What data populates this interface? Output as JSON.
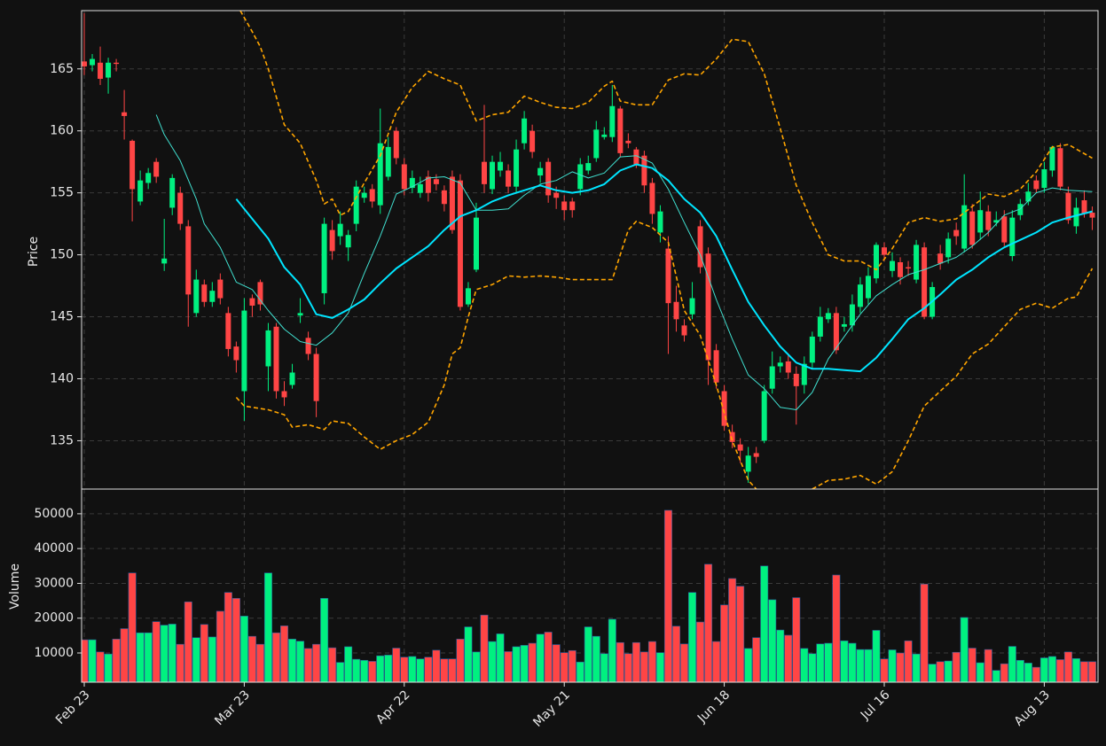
{
  "chart_data": {
    "type": "candlestick",
    "categories": [
      "Feb 23",
      null,
      null,
      null,
      null,
      null,
      null,
      null,
      null,
      null,
      null,
      null,
      null,
      null,
      null,
      null,
      null,
      null,
      null,
      null,
      "Mar 23",
      null,
      null,
      null,
      null,
      null,
      null,
      null,
      null,
      null,
      null,
      null,
      null,
      null,
      null,
      null,
      null,
      null,
      null,
      null,
      "Apr 22",
      null,
      null,
      null,
      null,
      null,
      null,
      null,
      null,
      null,
      null,
      null,
      null,
      null,
      null,
      null,
      null,
      null,
      null,
      null,
      "May 21",
      null,
      null,
      null,
      null,
      null,
      null,
      null,
      null,
      null,
      null,
      null,
      null,
      null,
      null,
      null,
      null,
      null,
      null,
      null,
      "Jun 18",
      null,
      null,
      null,
      null,
      null,
      null,
      null,
      null,
      null,
      null,
      null,
      null,
      null,
      null,
      null,
      null,
      null,
      null,
      null,
      "Jul 16",
      null,
      null,
      null,
      null,
      null,
      null,
      null,
      null,
      null,
      null,
      null,
      null,
      null,
      null,
      null,
      null,
      null,
      null,
      null,
      "Aug 13",
      null,
      null,
      null,
      null,
      null,
      null
    ],
    "open": [
      165.6,
      165.3,
      165.5,
      164.3,
      165.5,
      161.5,
      159.2,
      154.3,
      155.8,
      157.5,
      149.3,
      153.8,
      155.0,
      152.3,
      145.3,
      147.6,
      146.2,
      148.0,
      145.3,
      142.6,
      139.0,
      146.5,
      147.8,
      141.0,
      144.2,
      139.0,
      139.5,
      145.1,
      143.3,
      142.0,
      146.9,
      152.0,
      151.5,
      150.6,
      152.5,
      154.6,
      155.3,
      154.0,
      156.3,
      160.0,
      157.3,
      155.4,
      155.0,
      156.3,
      156.1,
      155.2,
      156.3,
      156.0,
      146.0,
      148.8,
      157.5,
      155.3,
      156.8,
      156.8,
      155.5,
      159.0,
      160.0,
      156.4,
      157.5,
      155.0,
      154.3,
      154.3,
      155.3,
      156.8,
      157.8,
      159.5,
      159.5,
      161.8,
      159.2,
      158.5,
      158.0,
      155.8,
      151.8,
      150.5,
      146.2,
      144.3,
      145.2,
      152.3,
      150.1,
      142.3,
      139.0,
      135.7,
      134.7,
      132.5,
      134.0,
      135.0,
      139.2,
      141.0,
      141.4,
      140.4,
      139.5,
      141.3,
      143.4,
      144.8,
      145.3,
      144.2,
      144.3,
      145.8,
      146.5,
      148.1,
      150.6,
      148.7,
      149.4,
      149.0,
      148.0,
      150.6,
      145.0,
      150.1,
      149.8,
      152.0,
      150.5,
      153.5,
      151.8,
      153.5,
      152.6,
      153.1,
      149.9,
      153.2,
      154.3,
      156.0,
      155.4,
      156.8,
      158.6,
      155.0,
      152.3,
      154.4,
      153.4
    ],
    "high": [
      169.5,
      166.2,
      166.8,
      165.9,
      165.8,
      163.3,
      159.3,
      156.8,
      157.0,
      157.8,
      152.9,
      156.5,
      155.5,
      152.8,
      148.8,
      148.0,
      147.8,
      148.5,
      145.8,
      143.0,
      146.5,
      146.8,
      148.0,
      144.5,
      144.5,
      139.8,
      141.2,
      146.5,
      143.8,
      142.5,
      153.0,
      152.8,
      153.5,
      152.0,
      156.0,
      155.5,
      155.7,
      161.8,
      159.5,
      160.3,
      157.8,
      156.8,
      156.3,
      156.8,
      156.5,
      155.6,
      156.8,
      156.5,
      147.8,
      154.2,
      162.1,
      158.0,
      158.3,
      157.3,
      159.3,
      161.6,
      160.5,
      157.5,
      157.8,
      155.5,
      154.8,
      154.6,
      157.8,
      158.0,
      160.8,
      160.3,
      163.7,
      162.0,
      159.8,
      158.7,
      158.4,
      156.2,
      154.0,
      151.5,
      147.5,
      144.8,
      147.8,
      152.8,
      150.6,
      142.8,
      139.5,
      136.3,
      135.2,
      134.5,
      134.5,
      139.5,
      142.2,
      141.8,
      142.0,
      141.0,
      141.8,
      143.8,
      145.8,
      145.7,
      145.8,
      145.0,
      146.8,
      148.2,
      149.0,
      151.0,
      151.0,
      150.2,
      149.8,
      149.5,
      151.2,
      151.0,
      147.8,
      150.8,
      151.8,
      152.6,
      156.5,
      154.1,
      155.1,
      154.0,
      153.5,
      153.6,
      153.6,
      154.5,
      155.8,
      156.4,
      157.5,
      158.8,
      159.0,
      155.5,
      154.6,
      155.2,
      153.9
    ],
    "low": [
      164.5,
      164.8,
      163.7,
      163.0,
      164.8,
      159.3,
      152.7,
      154.0,
      155.3,
      155.8,
      148.7,
      153.2,
      152.0,
      144.2,
      145.0,
      145.8,
      145.8,
      146.0,
      141.8,
      140.5,
      136.6,
      145.0,
      145.5,
      139.0,
      138.4,
      137.8,
      139.2,
      144.5,
      141.5,
      136.9,
      146.0,
      149.6,
      150.8,
      149.5,
      151.9,
      154.2,
      153.8,
      153.3,
      156.0,
      157.3,
      154.8,
      155.0,
      154.6,
      154.3,
      155.2,
      153.5,
      151.7,
      145.5,
      145.8,
      148.6,
      155.0,
      154.9,
      156.3,
      155.0,
      155.0,
      158.5,
      157.8,
      155.8,
      154.2,
      153.7,
      152.8,
      153.0,
      154.8,
      156.5,
      157.5,
      159.3,
      159.1,
      157.9,
      158.6,
      157.0,
      155.0,
      152.5,
      151.0,
      142.0,
      143.8,
      143.0,
      144.8,
      148.5,
      139.5,
      139.2,
      135.8,
      134.4,
      133.2,
      131.6,
      133.2,
      134.8,
      138.8,
      140.5,
      140.0,
      136.3,
      138.8,
      140.8,
      143.0,
      144.5,
      142.0,
      143.8,
      143.8,
      145.3,
      146.0,
      147.7,
      149.5,
      148.2,
      147.6,
      148.3,
      147.7,
      144.8,
      144.8,
      148.8,
      149.3,
      150.8,
      150.2,
      150.5,
      151.2,
      151.5,
      152.3,
      150.7,
      149.5,
      152.8,
      154.0,
      155.0,
      155.0,
      156.3,
      155.2,
      152.5,
      151.7,
      153.0,
      152.0
    ],
    "close": [
      165.2,
      165.8,
      164.2,
      165.5,
      165.4,
      161.2,
      155.3,
      156.0,
      156.6,
      156.3,
      149.7,
      156.2,
      152.5,
      146.8,
      148.0,
      146.2,
      147.1,
      146.5,
      142.4,
      141.5,
      145.5,
      145.9,
      146.0,
      143.9,
      139.0,
      138.5,
      140.5,
      145.3,
      142.0,
      138.2,
      152.5,
      150.3,
      152.5,
      151.6,
      155.5,
      155.0,
      154.3,
      159.0,
      158.7,
      157.8,
      155.3,
      156.2,
      155.7,
      155.0,
      155.7,
      154.1,
      152.0,
      145.8,
      147.3,
      153.0,
      155.7,
      157.5,
      157.5,
      155.5,
      158.5,
      161.0,
      158.3,
      157.0,
      154.8,
      154.6,
      153.6,
      153.6,
      157.3,
      157.4,
      160.1,
      159.7,
      162.0,
      158.2,
      159.0,
      157.3,
      155.6,
      153.3,
      153.5,
      146.1,
      144.8,
      143.5,
      146.5,
      149.0,
      141.5,
      139.7,
      136.2,
      134.9,
      134.2,
      133.8,
      133.7,
      139.0,
      141.0,
      141.3,
      140.5,
      139.4,
      141.2,
      143.4,
      145.0,
      145.3,
      142.3,
      144.4,
      146.0,
      147.6,
      148.3,
      150.8,
      150.0,
      149.5,
      148.2,
      148.9,
      150.8,
      145.0,
      147.4,
      149.3,
      151.3,
      151.5,
      154.0,
      150.8,
      153.6,
      152.0,
      152.8,
      151.0,
      153.0,
      154.1,
      155.1,
      155.3,
      156.9,
      158.7,
      155.5,
      152.8,
      153.8,
      153.3,
      153.0
    ],
    "up_color": "#00f080",
    "down_color": "#ff4545",
    "ylabel": "Price",
    "ylim": [
      131.1,
      169.7
    ],
    "yticks": [
      135,
      140,
      145,
      150,
      155,
      160,
      165
    ],
    "grid": true,
    "lines": [
      {
        "style": "thin",
        "color": "#40e0d0",
        "x": [
          9,
          10,
          12,
          14,
          15,
          17,
          19,
          21,
          23,
          25,
          27,
          29,
          31,
          33,
          35,
          37,
          39,
          41,
          43,
          45,
          47,
          49,
          51,
          53,
          55,
          57,
          59,
          61,
          63,
          65,
          67,
          69,
          71,
          73,
          75,
          77,
          79,
          81,
          83,
          85,
          87,
          89,
          91,
          93,
          95,
          97,
          99,
          101,
          103,
          105,
          107,
          109,
          111,
          113,
          115,
          117,
          119,
          121,
          123,
          126
        ],
        "values": [
          161.3,
          159.7,
          157.6,
          154.5,
          152.5,
          150.6,
          147.8,
          147.2,
          145.5,
          144.0,
          143.0,
          142.7,
          143.7,
          145.3,
          148.5,
          151.5,
          154.9,
          155.5,
          156.2,
          156.3,
          155.8,
          153.6,
          153.6,
          153.7,
          154.8,
          155.7,
          156.0,
          156.7,
          156.2,
          156.6,
          157.9,
          158.0,
          157.4,
          155.3,
          152.6,
          150.0,
          146.4,
          143.2,
          140.3,
          139.2,
          137.7,
          137.5,
          138.9,
          141.6,
          143.4,
          145.2,
          146.7,
          147.6,
          148.4,
          148.8,
          149.3,
          149.8,
          150.7,
          151.8,
          153.2,
          153.7,
          155.0,
          155.4,
          155.2,
          155.1
        ]
      },
      {
        "style": "thick",
        "color": "#00e5ff",
        "x": [
          19,
          21,
          23,
          25,
          27,
          29,
          31,
          33,
          35,
          37,
          39,
          41,
          43,
          45,
          47,
          49,
          51,
          53,
          55,
          57,
          59,
          61,
          63,
          65,
          67,
          69,
          71,
          73,
          75,
          77,
          79,
          81,
          83,
          85,
          87,
          89,
          91,
          93,
          95,
          97,
          99,
          101,
          103,
          105,
          107,
          109,
          111,
          113,
          115,
          117,
          119,
          121,
          123,
          126
        ],
        "values": [
          154.5,
          152.9,
          151.3,
          149.0,
          147.6,
          145.2,
          144.9,
          145.6,
          146.4,
          147.7,
          148.9,
          149.8,
          150.7,
          152.0,
          153.1,
          153.6,
          154.3,
          154.8,
          155.2,
          155.6,
          155.2,
          155.0,
          155.2,
          155.7,
          156.8,
          157.3,
          157.0,
          156.0,
          154.5,
          153.4,
          151.5,
          148.8,
          146.2,
          144.3,
          142.6,
          141.3,
          140.8,
          140.8,
          140.7,
          140.6,
          141.7,
          143.2,
          144.8,
          145.7,
          146.8,
          148.0,
          148.8,
          149.8,
          150.6,
          151.2,
          151.8,
          152.6,
          153.0,
          153.5
        ]
      },
      {
        "style": "dashed",
        "color": "#ffa500",
        "x": [
          19.5,
          21,
          22,
          23,
          25,
          27,
          29,
          30,
          31,
          32,
          33,
          35,
          37,
          39,
          41,
          43,
          45,
          47,
          49,
          51,
          53,
          55,
          57,
          59,
          61,
          63,
          65,
          66,
          67,
          69,
          71,
          73,
          75,
          77,
          79,
          81,
          83,
          85,
          87,
          89,
          91,
          93,
          95,
          97,
          99,
          101,
          103,
          105,
          107,
          109,
          111,
          113,
          115,
          117,
          119,
          121,
          123,
          126
        ],
        "values": [
          169.7,
          168.0,
          166.8,
          165.0,
          160.5,
          159.0,
          156.0,
          154.1,
          154.5,
          153.2,
          153.5,
          155.8,
          158.0,
          161.5,
          163.5,
          164.8,
          164.2,
          163.7,
          160.8,
          161.3,
          161.5,
          162.8,
          162.3,
          161.9,
          161.8,
          162.3,
          163.6,
          164.0,
          162.4,
          162.1,
          162.1,
          164.1,
          164.6,
          164.5,
          165.8,
          167.4,
          167.2,
          164.6,
          160.2,
          155.6,
          152.6,
          150.0,
          149.5,
          149.5,
          148.8,
          150.5,
          152.6,
          153.0,
          152.7,
          152.9,
          153.9,
          154.9,
          154.7,
          155.3,
          156.7,
          158.7,
          158.9,
          157.8
        ]
      },
      {
        "style": "dashed",
        "color": "#ffa500",
        "x": [
          19,
          20,
          23,
          25,
          26,
          28,
          30,
          31,
          33,
          35,
          37,
          39,
          41,
          43,
          45,
          46,
          47,
          48,
          49,
          51,
          53,
          55,
          57,
          59,
          61,
          63,
          65,
          66,
          67,
          68,
          69,
          71,
          73,
          75,
          77,
          79,
          81,
          83,
          84,
          88,
          91,
          93,
          95,
          97,
          99,
          101,
          103,
          105,
          107,
          109,
          111,
          113,
          115,
          117,
          119,
          121,
          123,
          124,
          126
        ],
        "values": [
          138.5,
          137.8,
          137.5,
          137.1,
          136.1,
          136.3,
          135.9,
          136.6,
          136.4,
          135.3,
          134.3,
          135.0,
          135.5,
          136.5,
          139.5,
          142.0,
          142.5,
          145.0,
          147.2,
          147.6,
          148.3,
          148.2,
          148.3,
          148.2,
          148.0,
          148.0,
          148.0,
          148.0,
          150.0,
          152.0,
          152.7,
          152.2,
          151.0,
          145.5,
          143.5,
          139.5,
          135.0,
          131.8,
          131.1,
          null,
          131.1,
          131.8,
          131.9,
          132.2,
          131.5,
          132.5,
          135.0,
          137.8,
          139.0,
          140.2,
          142.0,
          142.8,
          144.2,
          145.6,
          146.1,
          145.7,
          146.5,
          146.6,
          148.9
        ]
      }
    ],
    "volume": {
      "ylabel": "Volume",
      "values": [
        13800,
        13800,
        10300,
        9700,
        14000,
        17000,
        33000,
        15800,
        15800,
        19000,
        18000,
        18300,
        12500,
        24700,
        14400,
        18200,
        14600,
        22000,
        27400,
        25700,
        20600,
        14800,
        12500,
        33000,
        15800,
        17800,
        14000,
        13400,
        11300,
        12500,
        25700,
        11500,
        7300,
        11800,
        8200,
        7900,
        7600,
        9200,
        9400,
        11400,
        8800,
        9000,
        8300,
        8800,
        10800,
        8300,
        8300,
        14000,
        17500,
        10300,
        20900,
        13300,
        15500,
        10400,
        11800,
        12200,
        12800,
        15400,
        16000,
        12400,
        10100,
        10700,
        7400,
        17500,
        14800,
        9800,
        19700,
        13000,
        9800,
        13000,
        10300,
        13300,
        10100,
        51000,
        17700,
        12600,
        27400,
        18900,
        35500,
        13300,
        23800,
        31400,
        29200,
        11300,
        14400,
        35000,
        25300,
        16600,
        15100,
        25900,
        11300,
        9800,
        12600,
        12800,
        32400,
        13500,
        12800,
        11000,
        11000,
        16500,
        8300,
        10900,
        10000,
        13500,
        9700,
        29800,
        6800,
        7500,
        7700,
        10200,
        20200,
        11400,
        7200,
        11000,
        5000,
        6900,
        11900,
        7900,
        7100,
        5900,
        8600,
        9000,
        8100,
        10300,
        8400,
        7500,
        7500
      ],
      "ylim": [
        1600,
        57100
      ],
      "yticks": [
        10000,
        20000,
        30000,
        40000,
        50000
      ]
    }
  }
}
